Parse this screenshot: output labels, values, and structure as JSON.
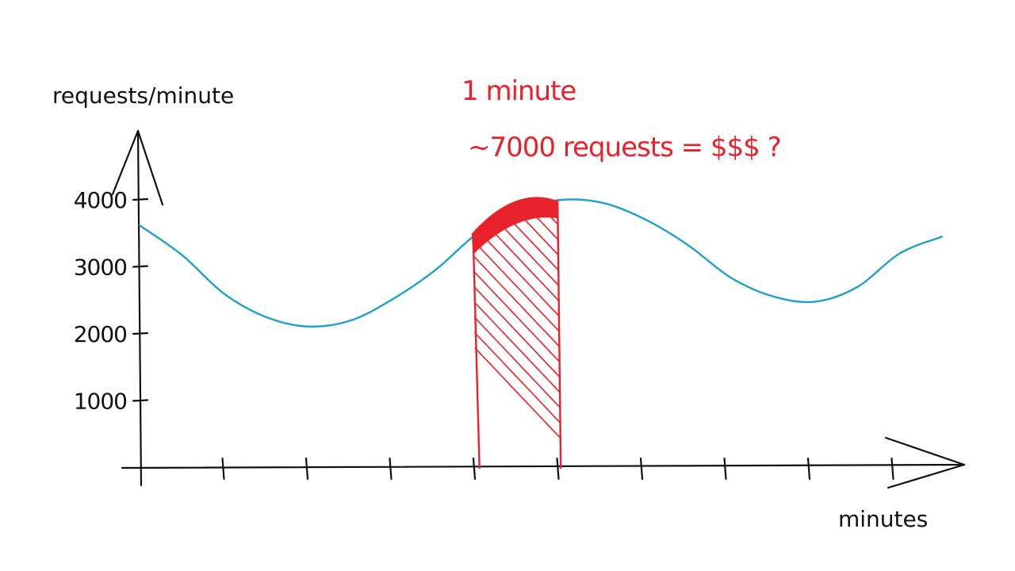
{
  "chart_data": {
    "type": "line",
    "ylabel": "requests/minute",
    "xlabel": "minutes",
    "y_ticks": [
      1000,
      2000,
      3000,
      4000
    ],
    "y_tick_labels": [
      "1000",
      "2000",
      "3000",
      "4000"
    ],
    "x_tick_count": 9,
    "ylim": [
      0,
      4500
    ],
    "series": [
      {
        "color": "#1f9fce",
        "x": [
          0,
          0.5,
          1,
          1.5,
          2,
          2.5,
          3,
          3.5,
          4,
          4.5,
          5,
          5.5,
          6,
          6.5,
          7,
          7.5,
          8,
          8.5,
          9,
          9.5
        ],
        "values": [
          3620,
          3180,
          2600,
          2250,
          2110,
          2200,
          2520,
          2950,
          3500,
          3850,
          4000,
          3950,
          3700,
          3320,
          2840,
          2560,
          2480,
          2700,
          3200,
          3450
        ]
      }
    ],
    "highlight": {
      "x_start": 3.95,
      "x_end": 4.95,
      "color": "#e8222b",
      "annotation_line1": "1 minute",
      "annotation_line2": "~7000 requests = $$$ ?"
    }
  }
}
